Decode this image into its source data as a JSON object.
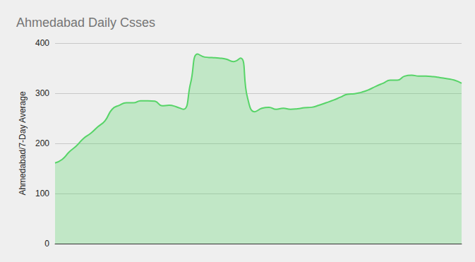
{
  "chart_data": {
    "type": "area",
    "title": "Ahmedabad Daily Csses",
    "y_label": "Ahmedabad/7-Day Average",
    "categories": [
      null,
      null,
      null,
      null,
      null,
      null,
      null,
      null,
      null,
      null,
      null,
      null,
      null,
      null,
      null,
      null,
      null,
      null,
      null,
      null,
      null,
      null,
      null,
      null,
      null,
      null,
      null,
      null,
      null,
      null,
      null,
      null,
      null,
      null,
      null,
      null,
      null,
      null,
      null,
      null,
      null,
      null,
      null,
      null,
      null,
      null,
      null,
      null,
      null,
      null,
      null,
      null,
      null,
      null,
      null,
      null,
      null,
      null
    ],
    "values": [
      161,
      168,
      183,
      195,
      210,
      220,
      233,
      245,
      268,
      276,
      281,
      281,
      285,
      285,
      284,
      275,
      276,
      273,
      268,
      320,
      378,
      372,
      371,
      370,
      368,
      363,
      370,
      290,
      263,
      270,
      272,
      268,
      270,
      268,
      269,
      271,
      272,
      276,
      281,
      286,
      292,
      298,
      299,
      302,
      307,
      314,
      320,
      326,
      326,
      334,
      336,
      334,
      334,
      333,
      331,
      329,
      326,
      320
    ],
    "color": "#57d468",
    "ylim": [
      0,
      400
    ],
    "yticks": [
      0,
      100,
      200,
      300,
      400
    ],
    "grid": true,
    "tick_labels": "y"
  }
}
